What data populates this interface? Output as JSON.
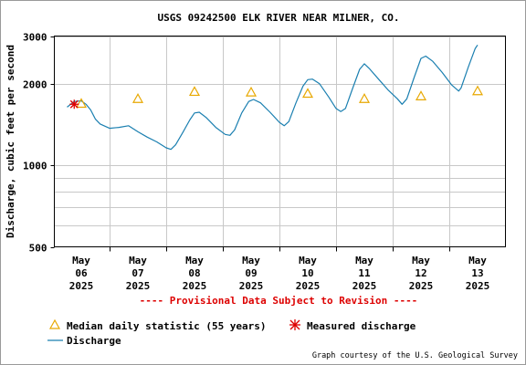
{
  "chart_data": {
    "type": "line",
    "title": "USGS 09242500 ELK RIVER NEAR MILNER, CO.",
    "ylabel": "Discharge, cubic feet per second",
    "yscale": "log",
    "ylim": [
      500,
      3000
    ],
    "y_ticks": [
      {
        "value": 500,
        "label": "500"
      },
      {
        "value": 1000,
        "label": "1000"
      },
      {
        "value": 2000,
        "label": "2000"
      },
      {
        "value": 3000,
        "label": "3000"
      }
    ],
    "x_ticks": [
      {
        "month": "May",
        "day": "06",
        "year": "2025"
      },
      {
        "month": "May",
        "day": "07",
        "year": "2025"
      },
      {
        "month": "May",
        "day": "08",
        "year": "2025"
      },
      {
        "month": "May",
        "day": "09",
        "year": "2025"
      },
      {
        "month": "May",
        "day": "10",
        "year": "2025"
      },
      {
        "month": "May",
        "day": "11",
        "year": "2025"
      },
      {
        "month": "May",
        "day": "12",
        "year": "2025"
      },
      {
        "month": "May",
        "day": "13",
        "year": "2025"
      }
    ],
    "grid": true,
    "provisional_note": "---- Provisional Data Subject to Revision ----",
    "legend": {
      "placement": "bottom",
      "items": [
        {
          "label": "Median daily statistic (55 years)",
          "marker": "triangle",
          "color": "#e8a800"
        },
        {
          "label": "Measured discharge",
          "marker": "asterisk",
          "color": "#dd0000"
        },
        {
          "label": "Discharge",
          "marker": "line",
          "color": "#1a7fb0"
        }
      ]
    },
    "series": [
      {
        "name": "Discharge",
        "color": "#1a7fb0",
        "points": [
          [
            "2025-05-05 18:00",
            1640
          ],
          [
            "2025-05-05 21:00",
            1720
          ],
          [
            "2025-05-06 00:00",
            1730
          ],
          [
            "2025-05-06 02:00",
            1680
          ],
          [
            "2025-05-06 04:00",
            1600
          ],
          [
            "2025-05-06 06:00",
            1480
          ],
          [
            "2025-05-06 08:00",
            1420
          ],
          [
            "2025-05-06 12:00",
            1370
          ],
          [
            "2025-05-06 16:00",
            1380
          ],
          [
            "2025-05-06 20:00",
            1400
          ],
          [
            "2025-05-07 00:00",
            1330
          ],
          [
            "2025-05-07 04:00",
            1270
          ],
          [
            "2025-05-07 08:00",
            1220
          ],
          [
            "2025-05-07 12:00",
            1160
          ],
          [
            "2025-05-07 14:00",
            1145
          ],
          [
            "2025-05-07 16:00",
            1190
          ],
          [
            "2025-05-07 19:00",
            1320
          ],
          [
            "2025-05-07 22:00",
            1470
          ],
          [
            "2025-05-08 00:00",
            1560
          ],
          [
            "2025-05-08 02:00",
            1570
          ],
          [
            "2025-05-08 05:00",
            1500
          ],
          [
            "2025-05-08 09:00",
            1380
          ],
          [
            "2025-05-08 13:00",
            1300
          ],
          [
            "2025-05-08 15:00",
            1290
          ],
          [
            "2025-05-08 17:00",
            1350
          ],
          [
            "2025-05-08 20:00",
            1560
          ],
          [
            "2025-05-08 23:00",
            1720
          ],
          [
            "2025-05-09 01:00",
            1750
          ],
          [
            "2025-05-09 04:00",
            1700
          ],
          [
            "2025-05-09 08:00",
            1570
          ],
          [
            "2025-05-09 12:00",
            1440
          ],
          [
            "2025-05-09 14:00",
            1400
          ],
          [
            "2025-05-09 16:00",
            1450
          ],
          [
            "2025-05-09 19:00",
            1700
          ],
          [
            "2025-05-09 22:00",
            1960
          ],
          [
            "2025-05-10 00:00",
            2070
          ],
          [
            "2025-05-10 02:00",
            2080
          ],
          [
            "2025-05-10 05:00",
            2000
          ],
          [
            "2025-05-10 09:00",
            1780
          ],
          [
            "2025-05-10 12:00",
            1620
          ],
          [
            "2025-05-10 14:00",
            1580
          ],
          [
            "2025-05-10 16:00",
            1620
          ],
          [
            "2025-05-10 19:00",
            1920
          ],
          [
            "2025-05-10 22:00",
            2260
          ],
          [
            "2025-05-11 00:00",
            2370
          ],
          [
            "2025-05-11 02:00",
            2280
          ],
          [
            "2025-05-11 06:00",
            2080
          ],
          [
            "2025-05-11 10:00",
            1900
          ],
          [
            "2025-05-11 14:00",
            1760
          ],
          [
            "2025-05-11 16:00",
            1680
          ],
          [
            "2025-05-11 18:00",
            1760
          ],
          [
            "2025-05-11 21:00",
            2100
          ],
          [
            "2025-05-12 00:00",
            2480
          ],
          [
            "2025-05-12 02:00",
            2530
          ],
          [
            "2025-05-12 05:00",
            2420
          ],
          [
            "2025-05-12 09:00",
            2200
          ],
          [
            "2025-05-12 13:00",
            1980
          ],
          [
            "2025-05-12 16:00",
            1880
          ],
          [
            "2025-05-12 17:00",
            1930
          ],
          [
            "2025-05-12 20:00",
            2300
          ],
          [
            "2025-05-12 23:00",
            2700
          ],
          [
            "2025-05-13 00:00",
            2780
          ]
        ]
      },
      {
        "name": "Median daily statistic (55 years)",
        "color": "#e8a800",
        "marker": "triangle",
        "points": [
          [
            "2025-05-06 00:00",
            1690
          ],
          [
            "2025-05-07 00:00",
            1760
          ],
          [
            "2025-05-08 00:00",
            1870
          ],
          [
            "2025-05-09 00:00",
            1860
          ],
          [
            "2025-05-10 00:00",
            1840
          ],
          [
            "2025-05-11 00:00",
            1760
          ],
          [
            "2025-05-12 00:00",
            1800
          ],
          [
            "2025-05-13 00:00",
            1880
          ]
        ]
      },
      {
        "name": "Measured discharge",
        "color": "#dd0000",
        "marker": "asterisk",
        "points": [
          [
            "2025-05-05 21:00",
            1680
          ]
        ]
      }
    ]
  },
  "credit": "Graph courtesy of the U.S. Geological Survey"
}
